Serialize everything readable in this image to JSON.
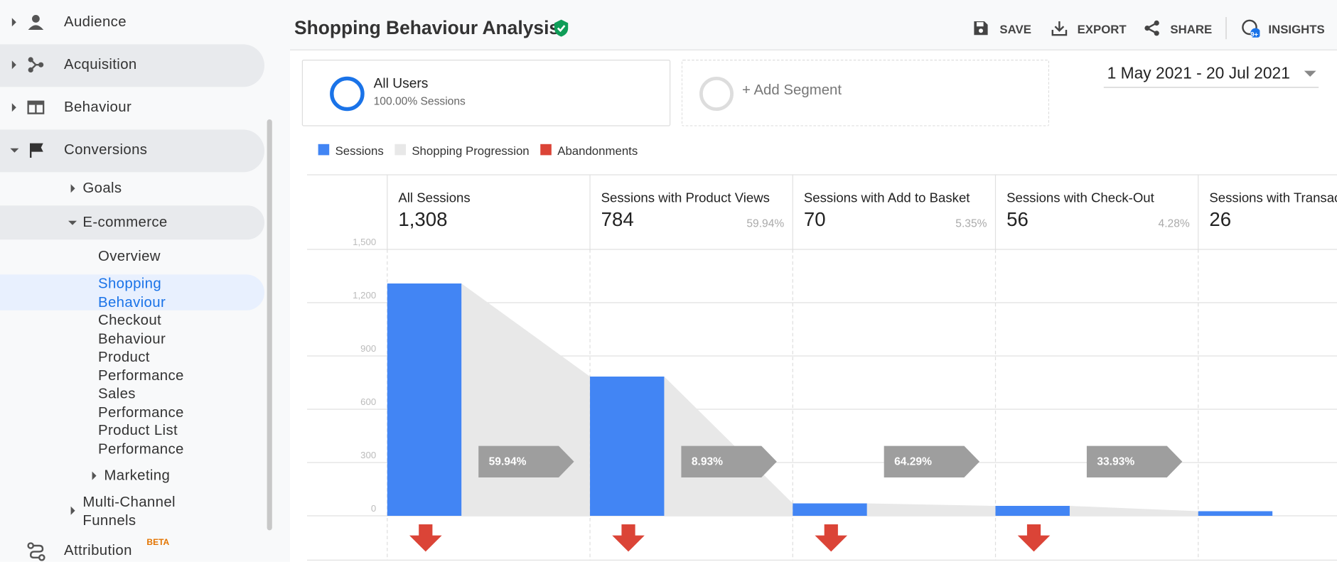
{
  "sidebar": {
    "items": [
      "Audience",
      "Acquisition",
      "Behaviour",
      "Conversions",
      "Goals",
      "E-commerce",
      "Overview",
      "Shopping Behaviour",
      "Checkout Behaviour",
      "Product Performance",
      "Sales Performance",
      "Product List Performance",
      "Marketing",
      "Multi-Channel Funnels",
      "Attribution"
    ],
    "attribution_badge": "BETA"
  },
  "header": {
    "title": "Shopping Behaviour Analysis",
    "actions": [
      "SAVE",
      "EXPORT",
      "SHARE",
      "INSIGHTS"
    ],
    "insights_badge": "9+"
  },
  "segments": {
    "active_name": "All Users",
    "active_detail": "100.00% Sessions",
    "add": "+ Add Segment"
  },
  "date_range": "1 May 2021 - 20 Jul 2021",
  "chart_data": {
    "type": "funnel-bar",
    "categories": [
      "All Sessions",
      "Sessions with Product Views",
      "Sessions with Add to Basket",
      "Sessions with Check-Out",
      "Sessions with Transactions"
    ],
    "series": [
      {
        "name": "Sessions",
        "color": "#4285f4",
        "values": [
          1308,
          784,
          70,
          56,
          26
        ],
        "value_labels": [
          "1,308",
          "784",
          "70",
          "56",
          "26"
        ],
        "rate_labels": [
          null,
          "59.94%",
          "5.35%",
          "4.28%",
          null
        ]
      },
      {
        "name": "Shopping Progression",
        "color": "#e8e8e8",
        "value_labels": [
          "59.94%",
          "8.93%",
          "64.29%",
          "33.93%"
        ]
      },
      {
        "name": "Abandonments",
        "color": "#db4437"
      }
    ],
    "ylim": [
      0,
      1500
    ],
    "yticks": [
      0,
      300,
      600,
      900,
      {
        "value": 1200,
        "label": "1,200"
      },
      {
        "value": 1500,
        "label": "1,500"
      }
    ],
    "grid": true
  }
}
